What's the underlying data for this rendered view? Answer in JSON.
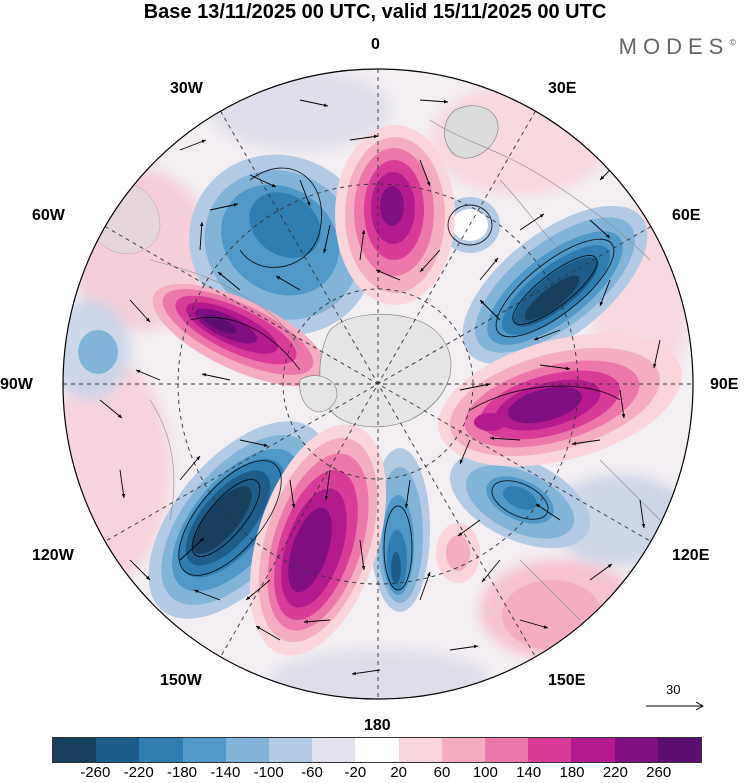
{
  "header": {
    "title": "Base 13/11/2025 00 UTC, valid 15/11/2025 00 UTC",
    "brand": "MODES",
    "brand_mark": "©"
  },
  "map": {
    "projection": "polar stereographic (north pole)",
    "longitude_labels": {
      "lon_0": "0",
      "lon_30e": "30E",
      "lon_60e": "60E",
      "lon_90e": "90E",
      "lon_120e": "120E",
      "lon_150e": "150E",
      "lon_180": "180",
      "lon_150w": "150W",
      "lon_120w": "120W",
      "lon_90w": "90W",
      "lon_60w": "60W",
      "lon_30w": "30W"
    },
    "reference_vector": "30"
  },
  "colorbar": {
    "labels": [
      "-260",
      "-220",
      "-180",
      "-140",
      "-100",
      "-60",
      "-20",
      "20",
      "60",
      "100",
      "140",
      "180",
      "220",
      "260"
    ],
    "colors": [
      "#16405e",
      "#1e5d8a",
      "#2f7db1",
      "#4f98c8",
      "#82b4d8",
      "#b3cae4",
      "#e2e2ee",
      "#ffffff",
      "#fad6dc",
      "#f5adc2",
      "#ec77aa",
      "#d93b98",
      "#b21a8d",
      "#801081",
      "#5c0f70"
    ]
  }
}
